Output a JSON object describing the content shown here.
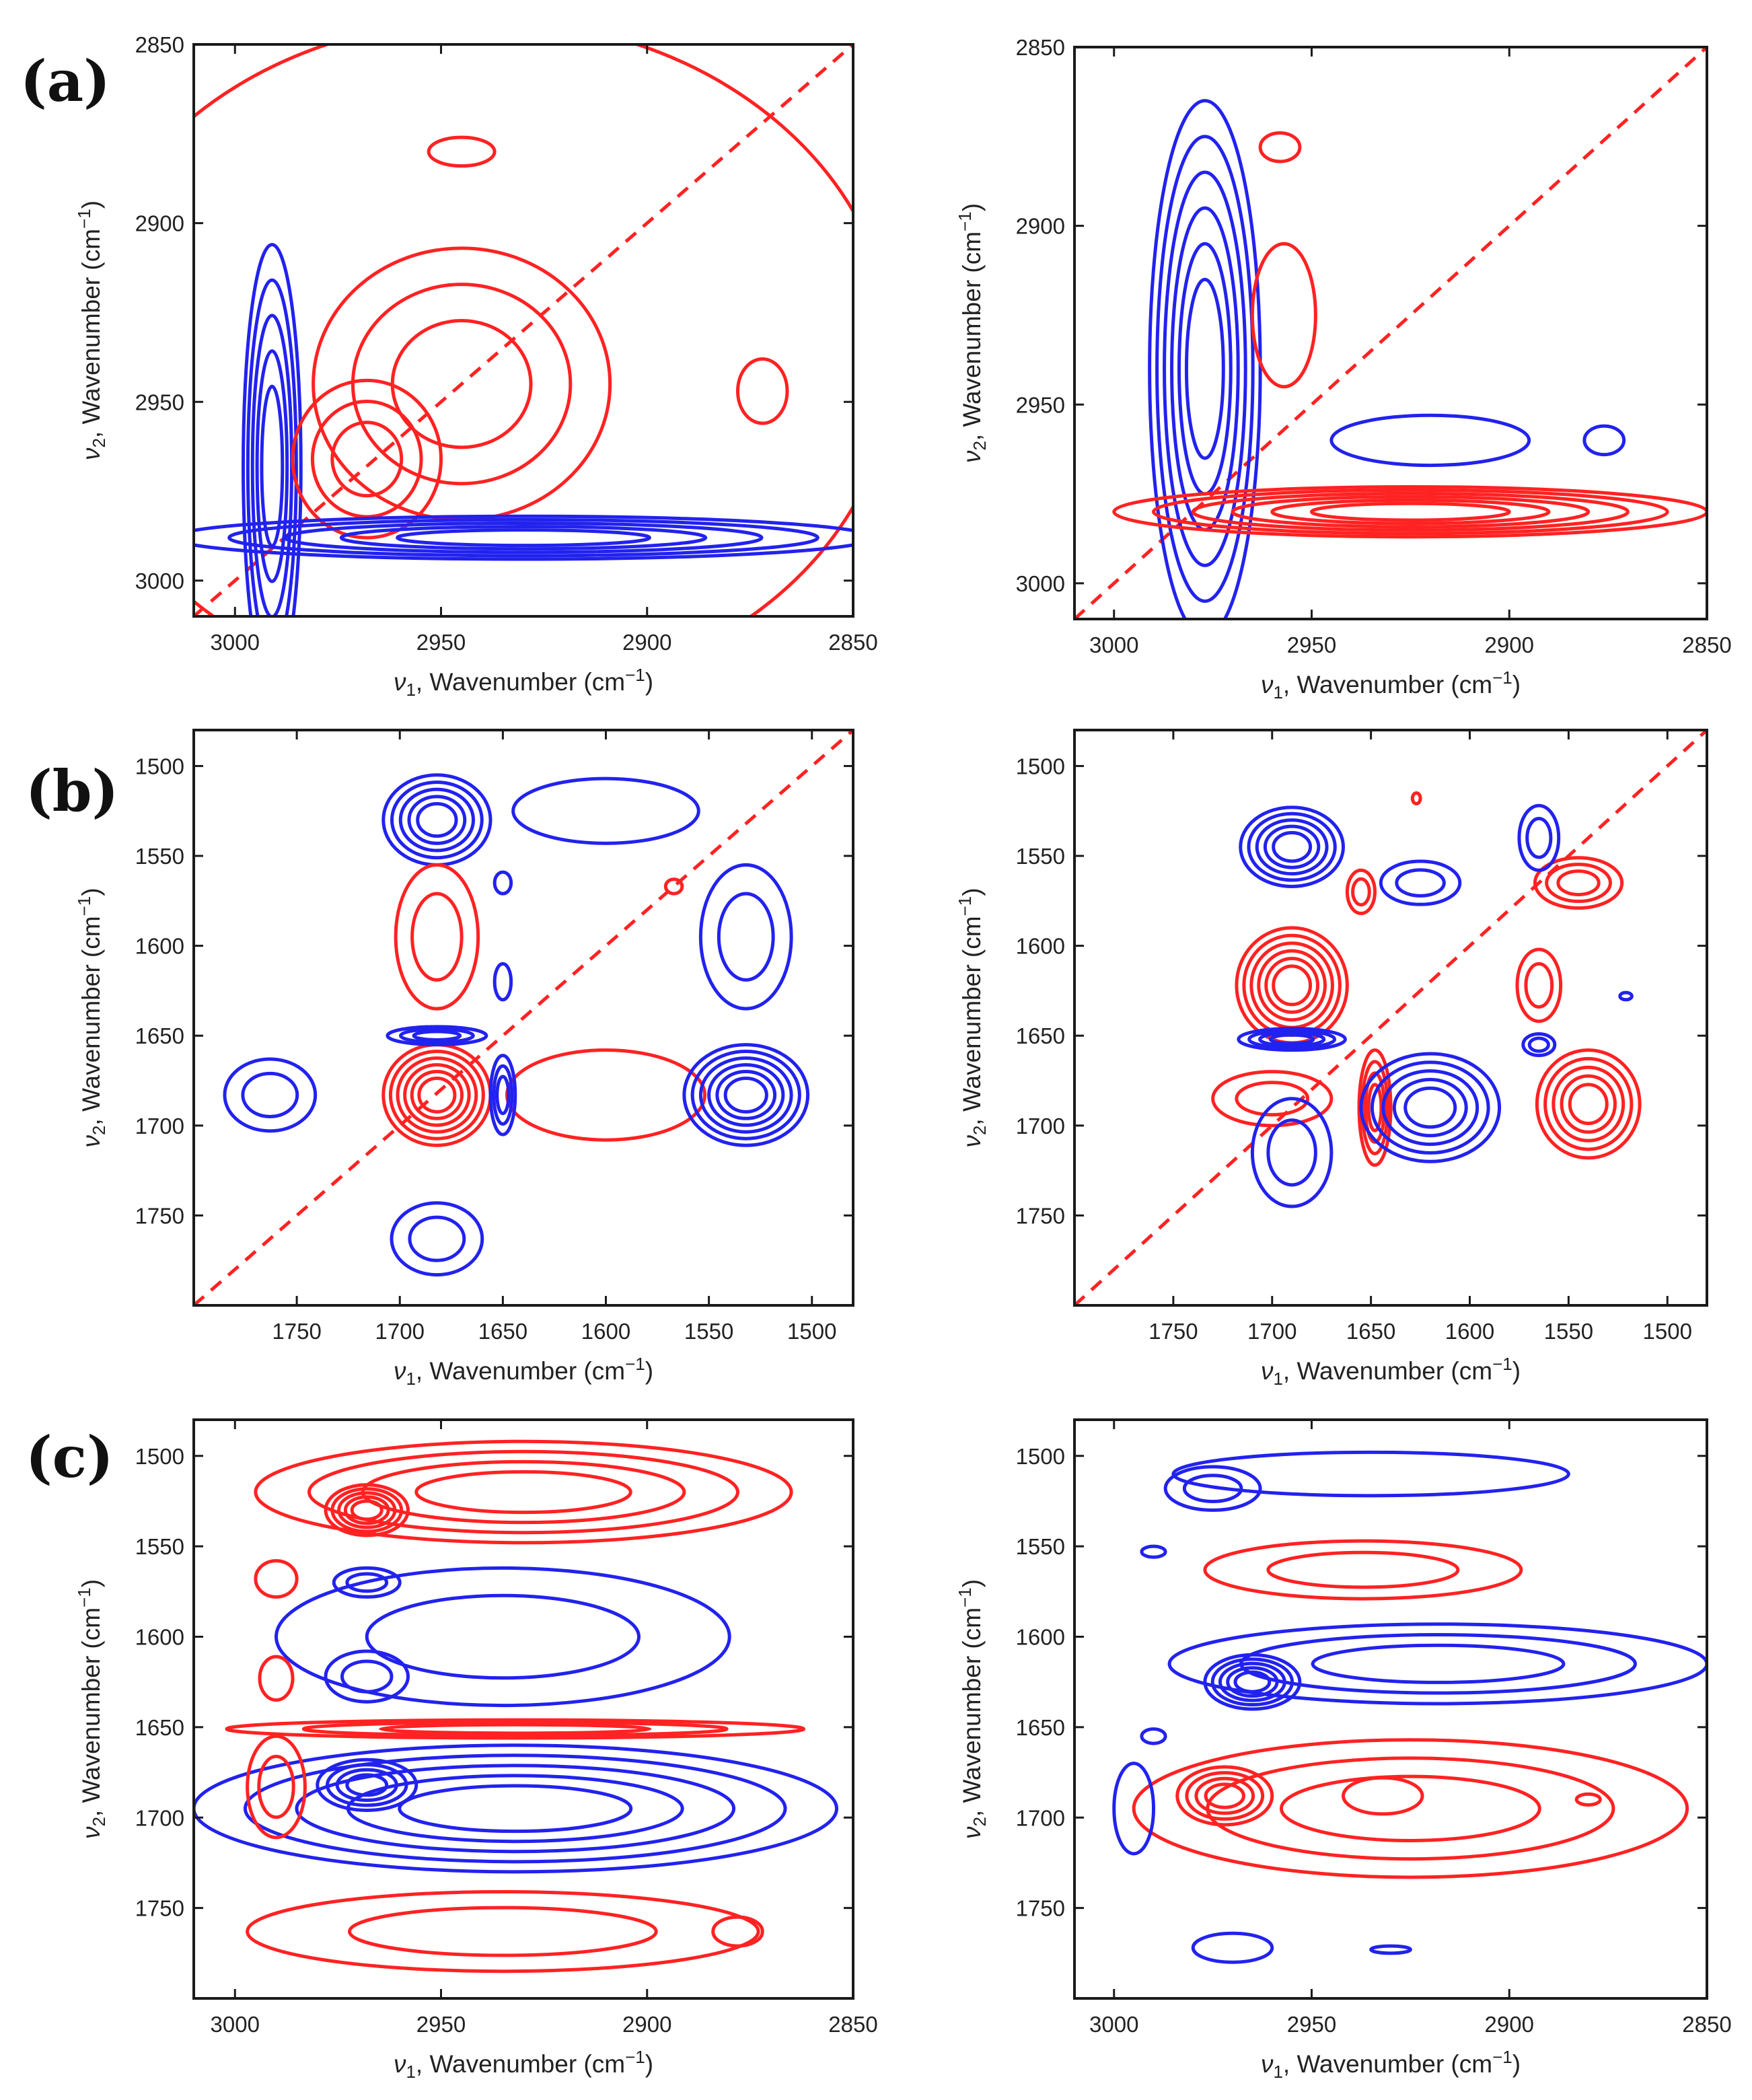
{
  "chart_data": {
    "type": "contour",
    "panel_labels": [
      "(a)",
      "(b)",
      "(c)"
    ],
    "colors": {
      "positive": "#ff2222",
      "negative": "#2222ee",
      "diagonal": "#ff2222",
      "frame": "#1a1a1a"
    },
    "charts": [
      {
        "id": "a-synchronous",
        "panel": "(a)",
        "xlabel_var": "ν",
        "xlabel_sub": "1",
        "xlabel_text": ", Wavenumber (cm",
        "xlabel_sup": "−1",
        "xlabel_close": ")",
        "ylabel_var": "ν",
        "ylabel_sub": "2",
        "ylabel_text": ", Wavenumber (cm",
        "ylabel_sup": "−1",
        "ylabel_close": ")",
        "xlim": [
          3010,
          2850
        ],
        "ylim": [
          2850,
          3010
        ],
        "xticks": [
          "3000",
          "2950",
          "2900",
          "2850"
        ],
        "yticks": [
          "2850",
          "2900",
          "2950",
          "3000"
        ],
        "diagonal": true,
        "peaks": [
          {
            "sign": "neg",
            "x": 2991,
            "y": 2968,
            "rx": 7,
            "ry": 62,
            "levels": 5
          },
          {
            "sign": "pos",
            "x": 2968,
            "y": 2966,
            "rx": 18,
            "ry": 22,
            "levels": 3
          },
          {
            "sign": "pos",
            "x": 2945,
            "y": 2945,
            "rx": 36,
            "ry": 38,
            "levels": 3
          },
          {
            "sign": "pos",
            "x": 2940,
            "y": 2938,
            "rx": 100,
            "ry": 95,
            "levels": 1
          },
          {
            "sign": "pos",
            "x": 2945,
            "y": 2880,
            "rx": 8,
            "ry": 4,
            "levels": 1
          },
          {
            "sign": "pos",
            "x": 2872,
            "y": 2947,
            "rx": 6,
            "ry": 9,
            "levels": 1
          },
          {
            "sign": "neg",
            "x": 2930,
            "y": 2988,
            "rx": 85,
            "ry": 6,
            "levels": 5
          }
        ]
      },
      {
        "id": "a-asynchronous",
        "panel": "(a)",
        "xlabel_var": "ν",
        "xlabel_sub": "1",
        "xlabel_text": ", Wavenumber (cm",
        "xlabel_sup": "−1",
        "xlabel_close": ")",
        "ylabel_var": "ν",
        "ylabel_sub": "2",
        "ylabel_text": ", Wavenumber (cm",
        "ylabel_sup": "−1",
        "ylabel_close": ")",
        "xlim": [
          3010,
          2850
        ],
        "ylim": [
          2850,
          3010
        ],
        "xticks": [
          "3000",
          "2950",
          "2900",
          "2850"
        ],
        "yticks": [
          "2850",
          "2900",
          "2950",
          "3000"
        ],
        "diagonal": true,
        "peaks": [
          {
            "sign": "neg",
            "x": 2977,
            "y": 2940,
            "rx": 14,
            "ry": 75,
            "levels": 6
          },
          {
            "sign": "pos",
            "x": 2925,
            "y": 2980,
            "rx": 75,
            "ry": 7,
            "levels": 6
          },
          {
            "sign": "pos",
            "x": 2958,
            "y": 2878,
            "rx": 5,
            "ry": 4,
            "levels": 1
          },
          {
            "sign": "pos",
            "x": 2957,
            "y": 2925,
            "rx": 8,
            "ry": 20,
            "levels": 1
          },
          {
            "sign": "neg",
            "x": 2920,
            "y": 2960,
            "rx": 25,
            "ry": 7,
            "levels": 1
          },
          {
            "sign": "neg",
            "x": 2876,
            "y": 2960,
            "rx": 5,
            "ry": 4,
            "levels": 1
          }
        ]
      },
      {
        "id": "b-synchronous",
        "panel": "(b)",
        "xlabel_var": "ν",
        "xlabel_sub": "1",
        "xlabel_text": ", Wavenumber (cm",
        "xlabel_sup": "−1",
        "xlabel_close": ")",
        "ylabel_var": "ν",
        "ylabel_sub": "2",
        "ylabel_text": ", Wavenumber (cm",
        "ylabel_sup": "−1",
        "ylabel_close": ")",
        "xlim": [
          1800,
          1480
        ],
        "ylim": [
          1480,
          1800
        ],
        "xticks": [
          "1750",
          "1700",
          "1650",
          "1600",
          "1550",
          "1500"
        ],
        "yticks": [
          "1500",
          "1550",
          "1600",
          "1650",
          "1700",
          "1750"
        ],
        "diagonal": true,
        "peaks": [
          {
            "sign": "neg",
            "x": 1682,
            "y": 1530,
            "rx": 26,
            "ry": 25,
            "levels": 5
          },
          {
            "sign": "neg",
            "x": 1600,
            "y": 1525,
            "rx": 45,
            "ry": 18,
            "levels": 1
          },
          {
            "sign": "pos",
            "x": 1682,
            "y": 1595,
            "rx": 20,
            "ry": 40,
            "levels": 2
          },
          {
            "sign": "neg",
            "x": 1532,
            "y": 1595,
            "rx": 22,
            "ry": 40,
            "levels": 2
          },
          {
            "sign": "pos",
            "x": 1682,
            "y": 1683,
            "rx": 26,
            "ry": 28,
            "levels": 6
          },
          {
            "sign": "pos",
            "x": 1600,
            "y": 1683,
            "rx": 48,
            "ry": 25,
            "levels": 1
          },
          {
            "sign": "neg",
            "x": 1532,
            "y": 1683,
            "rx": 30,
            "ry": 28,
            "levels": 6
          },
          {
            "sign": "neg",
            "x": 1763,
            "y": 1683,
            "rx": 22,
            "ry": 20,
            "levels": 2
          },
          {
            "sign": "neg",
            "x": 1682,
            "y": 1763,
            "rx": 22,
            "ry": 20,
            "levels": 2
          },
          {
            "sign": "neg",
            "x": 1650,
            "y": 1683,
            "rx": 6,
            "ry": 22,
            "levels": 3
          },
          {
            "sign": "neg",
            "x": 1682,
            "y": 1650,
            "rx": 24,
            "ry": 5,
            "levels": 3
          },
          {
            "sign": "neg",
            "x": 1650,
            "y": 1620,
            "rx": 4,
            "ry": 10,
            "levels": 1
          },
          {
            "sign": "neg",
            "x": 1650,
            "y": 1565,
            "rx": 4,
            "ry": 6,
            "levels": 1
          },
          {
            "sign": "pos",
            "x": 1567,
            "y": 1567,
            "rx": 4,
            "ry": 4,
            "levels": 1
          }
        ]
      },
      {
        "id": "b-asynchronous",
        "panel": "(b)",
        "xlabel_var": "ν",
        "xlabel_sub": "1",
        "xlabel_text": ", Wavenumber (cm",
        "xlabel_sup": "−1",
        "xlabel_close": ")",
        "ylabel_var": "ν",
        "ylabel_sub": "2",
        "ylabel_text": ", Wavenumber (cm",
        "ylabel_sup": "−1",
        "ylabel_close": ")",
        "xlim": [
          1800,
          1480
        ],
        "ylim": [
          1480,
          1800
        ],
        "xticks": [
          "1750",
          "1700",
          "1650",
          "1600",
          "1550",
          "1500"
        ],
        "yticks": [
          "1500",
          "1550",
          "1600",
          "1650",
          "1700",
          "1750"
        ],
        "diagonal": true,
        "peaks": [
          {
            "sign": "neg",
            "x": 1690,
            "y": 1545,
            "rx": 26,
            "ry": 22,
            "levels": 5
          },
          {
            "sign": "pos",
            "x": 1690,
            "y": 1622,
            "rx": 28,
            "ry": 32,
            "levels": 6
          },
          {
            "sign": "neg",
            "x": 1690,
            "y": 1652,
            "rx": 27,
            "ry": 6,
            "levels": 4
          },
          {
            "sign": "pos",
            "x": 1700,
            "y": 1685,
            "rx": 30,
            "ry": 15,
            "levels": 2
          },
          {
            "sign": "neg",
            "x": 1690,
            "y": 1715,
            "rx": 20,
            "ry": 30,
            "levels": 2
          },
          {
            "sign": "pos",
            "x": 1648,
            "y": 1690,
            "rx": 8,
            "ry": 32,
            "levels": 4
          },
          {
            "sign": "neg",
            "x": 1620,
            "y": 1690,
            "rx": 35,
            "ry": 30,
            "levels": 5
          },
          {
            "sign": "pos",
            "x": 1540,
            "y": 1688,
            "rx": 26,
            "ry": 30,
            "levels": 5
          },
          {
            "sign": "pos",
            "x": 1545,
            "y": 1565,
            "rx": 22,
            "ry": 14,
            "levels": 3
          },
          {
            "sign": "neg",
            "x": 1565,
            "y": 1540,
            "rx": 10,
            "ry": 18,
            "levels": 2
          },
          {
            "sign": "neg",
            "x": 1625,
            "y": 1565,
            "rx": 20,
            "ry": 12,
            "levels": 2
          },
          {
            "sign": "pos",
            "x": 1655,
            "y": 1570,
            "rx": 7,
            "ry": 12,
            "levels": 2
          },
          {
            "sign": "pos",
            "x": 1565,
            "y": 1622,
            "rx": 11,
            "ry": 20,
            "levels": 2
          },
          {
            "sign": "neg",
            "x": 1565,
            "y": 1655,
            "rx": 8,
            "ry": 6,
            "levels": 2
          },
          {
            "sign": "pos",
            "x": 1627,
            "y": 1518,
            "rx": 2,
            "ry": 3,
            "levels": 1
          },
          {
            "sign": "neg",
            "x": 1521,
            "y": 1628,
            "rx": 3,
            "ry": 2,
            "levels": 1
          }
        ]
      },
      {
        "id": "c-synchronous",
        "panel": "(c)",
        "xlabel_var": "ν",
        "xlabel_sub": "1",
        "xlabel_text": ", Wavenumber (cm",
        "xlabel_sup": "−1",
        "xlabel_close": ")",
        "ylabel_var": "ν",
        "ylabel_sub": "2",
        "ylabel_text": ", Wavenumber (cm",
        "ylabel_sup": "−1",
        "ylabel_close": ")",
        "xlim": [
          3010,
          2850
        ],
        "ylim": [
          1480,
          1800
        ],
        "xticks": [
          "3000",
          "2950",
          "2900",
          "2850"
        ],
        "yticks": [
          "1500",
          "1550",
          "1600",
          "1650",
          "1700",
          "1750"
        ],
        "diagonal": false,
        "peaks": [
          {
            "sign": "pos",
            "x": 2930,
            "y": 1520,
            "rx": 65,
            "ry": 28,
            "levels": 4
          },
          {
            "sign": "pos",
            "x": 2968,
            "y": 1530,
            "rx": 10,
            "ry": 14,
            "levels": 5
          },
          {
            "sign": "neg",
            "x": 2935,
            "y": 1600,
            "rx": 55,
            "ry": 38,
            "levels": 2
          },
          {
            "sign": "neg",
            "x": 2968,
            "y": 1570,
            "rx": 8,
            "ry": 8,
            "levels": 2
          },
          {
            "sign": "neg",
            "x": 2968,
            "y": 1622,
            "rx": 10,
            "ry": 14,
            "levels": 2
          },
          {
            "sign": "pos",
            "x": 2932,
            "y": 1651,
            "rx": 70,
            "ry": 5,
            "levels": 3
          },
          {
            "sign": "neg",
            "x": 2932,
            "y": 1695,
            "rx": 78,
            "ry": 35,
            "levels": 5
          },
          {
            "sign": "neg",
            "x": 2968,
            "y": 1682,
            "rx": 12,
            "ry": 14,
            "levels": 4
          },
          {
            "sign": "pos",
            "x": 2990,
            "y": 1683,
            "rx": 7,
            "ry": 28,
            "levels": 2
          },
          {
            "sign": "pos",
            "x": 2990,
            "y": 1568,
            "rx": 5,
            "ry": 10,
            "levels": 1
          },
          {
            "sign": "pos",
            "x": 2990,
            "y": 1623,
            "rx": 4,
            "ry": 12,
            "levels": 1
          },
          {
            "sign": "pos",
            "x": 2935,
            "y": 1763,
            "rx": 62,
            "ry": 22,
            "levels": 2
          },
          {
            "sign": "pos",
            "x": 2878,
            "y": 1763,
            "rx": 6,
            "ry": 8,
            "levels": 1
          }
        ]
      },
      {
        "id": "c-asynchronous",
        "panel": "(c)",
        "xlabel_var": "ν",
        "xlabel_sub": "1",
        "xlabel_text": ", Wavenumber (cm",
        "xlabel_sup": "−1",
        "xlabel_close": ")",
        "ylabel_var": "ν",
        "ylabel_sub": "2",
        "ylabel_text": ", Wavenumber (cm",
        "ylabel_sup": "−1",
        "ylabel_close": ")",
        "xlim": [
          3010,
          2850
        ],
        "ylim": [
          1480,
          1800
        ],
        "xticks": [
          "3000",
          "2950",
          "2900",
          "2850"
        ],
        "yticks": [
          "1500",
          "1550",
          "1600",
          "1650",
          "1700",
          "1750"
        ],
        "diagonal": false,
        "peaks": [
          {
            "sign": "neg",
            "x": 2935,
            "y": 1510,
            "rx": 50,
            "ry": 12,
            "levels": 1
          },
          {
            "sign": "neg",
            "x": 2975,
            "y": 1518,
            "rx": 12,
            "ry": 12,
            "levels": 2
          },
          {
            "sign": "neg",
            "x": 2990,
            "y": 1553,
            "rx": 3,
            "ry": 3,
            "levels": 1
          },
          {
            "sign": "pos",
            "x": 2937,
            "y": 1563,
            "rx": 40,
            "ry": 16,
            "levels": 2
          },
          {
            "sign": "neg",
            "x": 2918,
            "y": 1615,
            "rx": 68,
            "ry": 22,
            "levels": 3
          },
          {
            "sign": "neg",
            "x": 2965,
            "y": 1625,
            "rx": 12,
            "ry": 15,
            "levels": 5
          },
          {
            "sign": "pos",
            "x": 2925,
            "y": 1695,
            "rx": 70,
            "ry": 38,
            "levels": 3
          },
          {
            "sign": "pos",
            "x": 2972,
            "y": 1688,
            "rx": 12,
            "ry": 16,
            "levels": 4
          },
          {
            "sign": "pos",
            "x": 2932,
            "y": 1688,
            "rx": 10,
            "ry": 10,
            "levels": 1
          },
          {
            "sign": "pos",
            "x": 2880,
            "y": 1690,
            "rx": 3,
            "ry": 3,
            "levels": 1
          },
          {
            "sign": "neg",
            "x": 2995,
            "y": 1695,
            "rx": 5,
            "ry": 25,
            "levels": 1
          },
          {
            "sign": "neg",
            "x": 2990,
            "y": 1655,
            "rx": 3,
            "ry": 4,
            "levels": 1
          },
          {
            "sign": "neg",
            "x": 2970,
            "y": 1772,
            "rx": 10,
            "ry": 8,
            "levels": 1
          },
          {
            "sign": "neg",
            "x": 2930,
            "y": 1773,
            "rx": 5,
            "ry": 2,
            "levels": 1
          }
        ]
      }
    ]
  }
}
